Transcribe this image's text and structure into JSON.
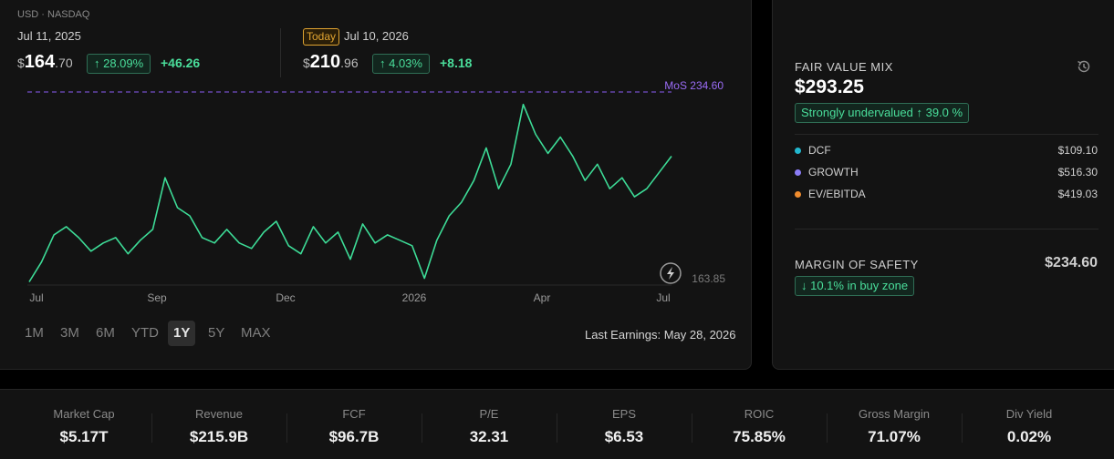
{
  "exchange": "USD · NASDAQ",
  "start": {
    "date": "Jul 11, 2025",
    "currency": "$",
    "price_int": "164",
    "price_dec": ".70",
    "pct": "↑ 28.09%",
    "change": "+46.26"
  },
  "end": {
    "badge": "Today",
    "date": "Jul 10, 2026",
    "currency": "$",
    "price_int": "210",
    "price_dec": ".96",
    "pct": "↑ 4.03%",
    "change": "+8.18"
  },
  "chart_data": {
    "type": "line",
    "x_ticks": [
      "Jul",
      "Sep",
      "Dec",
      "2026",
      "Apr",
      "Jul"
    ],
    "y_min_label": "163.85",
    "y_min": 163.85,
    "mos_line": {
      "label": "MoS 234.60",
      "value": 234.6
    },
    "series": [
      {
        "x": [
          "2025-07-11",
          "2025-07-18",
          "2025-07-25",
          "2025-08-01",
          "2025-08-08",
          "2025-08-15",
          "2025-08-22",
          "2025-08-29",
          "2025-09-05",
          "2025-09-12",
          "2025-09-19",
          "2025-09-26",
          "2025-10-03",
          "2025-10-10",
          "2025-10-17",
          "2025-10-24",
          "2025-10-31",
          "2025-11-07",
          "2025-11-14",
          "2025-11-21",
          "2025-11-28",
          "2025-12-05",
          "2025-12-12",
          "2025-12-19",
          "2025-12-26",
          "2026-01-02",
          "2026-01-09",
          "2026-01-16",
          "2026-01-23",
          "2026-01-30",
          "2026-02-06",
          "2026-02-13",
          "2026-02-20",
          "2026-02-27",
          "2026-03-06",
          "2026-03-13",
          "2026-03-20",
          "2026-03-27",
          "2026-04-03",
          "2026-04-10",
          "2026-04-17",
          "2026-04-24",
          "2026-05-01",
          "2026-05-08",
          "2026-05-15",
          "2026-05-22",
          "2026-05-29",
          "2026-06-05",
          "2026-06-12",
          "2026-06-19",
          "2026-06-26",
          "2026-07-03",
          "2026-07-10"
        ],
        "y": [
          164.7,
          172,
          182,
          185,
          181,
          176,
          179,
          181,
          175,
          180,
          184,
          203,
          192,
          189,
          181,
          179,
          184,
          179,
          177,
          183,
          187,
          178,
          175,
          185,
          179,
          183,
          173,
          186,
          179,
          182,
          180,
          178,
          166,
          180,
          189,
          194,
          202,
          214,
          199,
          208,
          230,
          219,
          212,
          218,
          211,
          202,
          208,
          199,
          203,
          196,
          199,
          205,
          210.96
        ]
      }
    ]
  },
  "range_buttons": [
    "1M",
    "3M",
    "6M",
    "YTD",
    "1Y",
    "5Y",
    "MAX"
  ],
  "active_range": "1Y",
  "last_earnings": "Last Earnings: May 28, 2026",
  "fair_value": {
    "title": "FAIR VALUE MIX",
    "value": "$293.25",
    "badge": "Strongly undervalued ↑ 39.0 %",
    "items": [
      {
        "label": "DCF",
        "value": "$109.10",
        "color": "#22b8cf"
      },
      {
        "label": "GROWTH",
        "value": "$516.30",
        "color": "#8b7cf6"
      },
      {
        "label": "EV/EBITDA",
        "value": "$419.03",
        "color": "#f08c2e"
      }
    ],
    "mos_title": "MARGIN OF SAFETY",
    "mos_value": "$234.60",
    "mos_badge": "↓ 10.1% in buy zone"
  },
  "metrics": [
    {
      "label": "Market Cap",
      "value": "$5.17T"
    },
    {
      "label": "Revenue",
      "value": "$215.9B"
    },
    {
      "label": "FCF",
      "value": "$96.7B"
    },
    {
      "label": "P/E",
      "value": "32.31"
    },
    {
      "label": "EPS",
      "value": "$6.53"
    },
    {
      "label": "ROIC",
      "value": "75.85%"
    },
    {
      "label": "Gross Margin",
      "value": "71.07%"
    },
    {
      "label": "Div Yield",
      "value": "0.02%"
    }
  ],
  "colors": {
    "line": "#3ddc97",
    "mos": "#8b5cf6",
    "accent_green": "#4ade9b",
    "today_badge": "#e0a431"
  }
}
